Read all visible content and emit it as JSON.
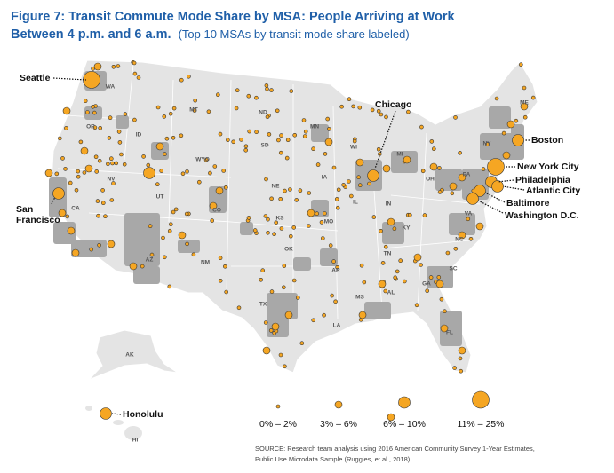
{
  "title": [
    "Figure 7: Transit Commute Mode Share by MSA: People Arriving at Work",
    "Between 4 p.m. and 6 a.m."
  ],
  "subtitle": "(Top 10 MSAs by transit mode share labeled)",
  "cities": [
    "Seattle",
    "Chicago",
    "Boston",
    "New York City",
    "Philadelphia",
    "Atlantic City",
    "Baltimore",
    "Washington D.C.",
    "San",
    "Francisco",
    "Honolulu"
  ],
  "states": [
    "WA",
    "OR",
    "ID",
    "MT",
    "ND",
    "MN",
    "WI",
    "MI",
    "ME",
    "SD",
    "WYO",
    "NV",
    "UT",
    "CO",
    "NE",
    "IA",
    "IL",
    "IN",
    "OH",
    "PA",
    "NY",
    "KS",
    "MO",
    "KY",
    "VA",
    "CA",
    "AZ",
    "NM",
    "OK",
    "TX",
    "AR",
    "TN",
    "NC",
    "SC",
    "GA",
    "AL",
    "MS",
    "LA",
    "FL",
    "AK",
    "HI"
  ],
  "legend": [
    "0% – 2%",
    "3% – 6%",
    "6% – 10%",
    "11% – 25%"
  ],
  "source": [
    "SOURCE: Research team analysis using 2016 American Community Survey 1-Year Estimates,",
    "Public Use Microdata Sample (Ruggles, et al., 2018)."
  ]
}
